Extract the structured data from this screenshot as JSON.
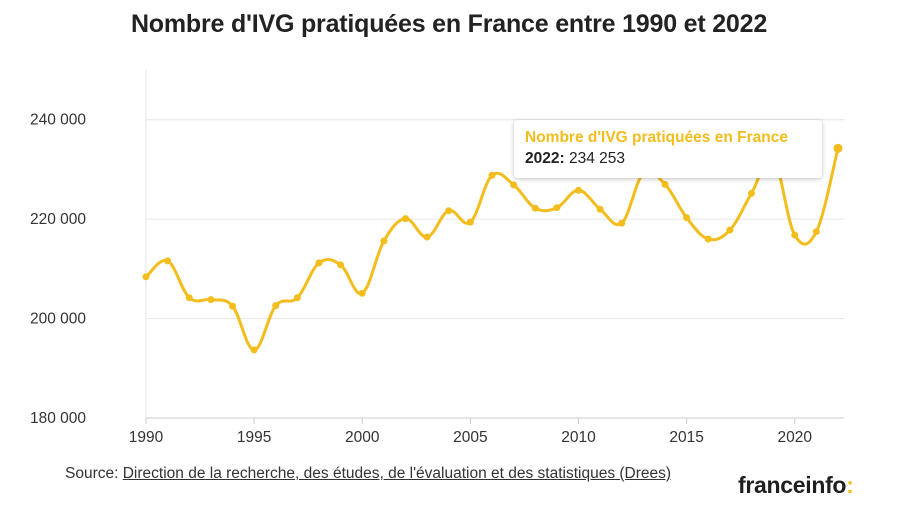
{
  "title": "Nombre d'IVG pratiquées en France entre 1990 et 2022",
  "footer": {
    "source_label": "Source:",
    "source_link": "Direction de la recherche, des études, de l'évaluation et des statistiques (Drees)"
  },
  "logo": {
    "text": "franceinfo",
    "colon": ":"
  },
  "tooltip": {
    "series": "Nombre d'IVG pratiquées en France",
    "year": "2022:",
    "value": "234 253"
  },
  "colors": {
    "line": "#f2bd1d",
    "grid": "#e6e6e6",
    "axis": "#cccccc"
  },
  "chart_data": {
    "type": "line",
    "title": "Nombre d'IVG pratiquées en France entre 1990 et 2022",
    "xlabel": "",
    "ylabel": "",
    "xlim": [
      1990,
      2022
    ],
    "ylim": [
      180000,
      250000
    ],
    "x_ticks": [
      1990,
      1995,
      2000,
      2005,
      2010,
      2015,
      2020
    ],
    "x_tick_labels": [
      "1990",
      "1995",
      "2000",
      "2005",
      "2010",
      "2015",
      "2020"
    ],
    "y_ticks": [
      180000,
      200000,
      220000,
      240000
    ],
    "y_tick_labels": [
      "180 000",
      "200 000",
      "220 000",
      "240 000"
    ],
    "grid": true,
    "series": [
      {
        "name": "Nombre d'IVG pratiquées en France",
        "x": [
          1990,
          1991,
          1992,
          1993,
          1994,
          1995,
          1996,
          1997,
          1998,
          1999,
          2000,
          2001,
          2002,
          2003,
          2004,
          2005,
          2006,
          2007,
          2008,
          2009,
          2010,
          2011,
          2012,
          2013,
          2014,
          2015,
          2016,
          2017,
          2018,
          2019,
          2020,
          2021,
          2022
        ],
        "values": [
          208400,
          211600,
          204200,
          203800,
          202500,
          193700,
          202600,
          204200,
          211200,
          210800,
          205100,
          215600,
          220100,
          216400,
          221700,
          219400,
          228800,
          226900,
          222200,
          222300,
          225800,
          222000,
          219200,
          229200,
          227000,
          220300,
          216000,
          217800,
          225200,
          232200,
          216800,
          217500,
          234253
        ]
      }
    ]
  }
}
